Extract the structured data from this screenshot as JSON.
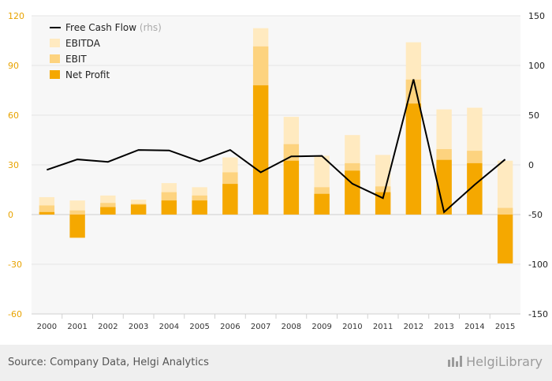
{
  "chart_data": {
    "type": "bar",
    "categories": [
      "2000",
      "2001",
      "2002",
      "2003",
      "2004",
      "2005",
      "2006",
      "2007",
      "2008",
      "2009",
      "2010",
      "2011",
      "2012",
      "2013",
      "2014",
      "2015"
    ],
    "series": [
      {
        "name": "EBITDA",
        "kind": "bar",
        "axis": "left",
        "values": [
          10.5,
          8.5,
          11.5,
          9,
          19,
          16.5,
          34.5,
          112.5,
          59,
          35.5,
          48,
          36,
          104,
          63.5,
          64.5,
          32.5
        ]
      },
      {
        "name": "EBIT",
        "kind": "bar",
        "axis": "left",
        "values": [
          5.5,
          2.5,
          7,
          6.5,
          13.5,
          11.5,
          25.5,
          101.5,
          42.5,
          16.5,
          31,
          17,
          81.5,
          39.5,
          38.5,
          4
        ]
      },
      {
        "name": "Net Profit",
        "kind": "bar",
        "axis": "left",
        "values": [
          1.5,
          -14,
          4.5,
          6,
          8.5,
          8.5,
          18.5,
          78,
          32.5,
          12.5,
          26.5,
          13.5,
          67,
          33,
          31,
          -29.5
        ]
      },
      {
        "name": "Free Cash Flow",
        "suffix": "(rhs)",
        "kind": "line",
        "axis": "right",
        "values": [
          -5,
          5.5,
          3,
          15,
          14.5,
          3.5,
          15,
          -7.5,
          8.5,
          9,
          -19,
          -33.5,
          86,
          -47.5,
          -20,
          5.5
        ]
      }
    ],
    "ylim_left": [
      -60,
      120
    ],
    "yticks_left": [
      -60,
      -30,
      0,
      30,
      60,
      90,
      120
    ],
    "ylim_right": [
      -150,
      150
    ],
    "yticks_right": [
      -150,
      -100,
      -50,
      0,
      50,
      100,
      150
    ],
    "legend_position": "top-left",
    "colors": {
      "EBITDA": "#ffeac0",
      "EBIT": "#fdd37f",
      "Net Profit": "#f5a800",
      "Free Cash Flow": "#000000",
      "left_ticks": "#e8a300"
    }
  },
  "footer": {
    "source": "Source: Company Data, Helgi Analytics",
    "brand": "HelgiLibrary",
    "brand_icon": "helgi-library-logo"
  }
}
